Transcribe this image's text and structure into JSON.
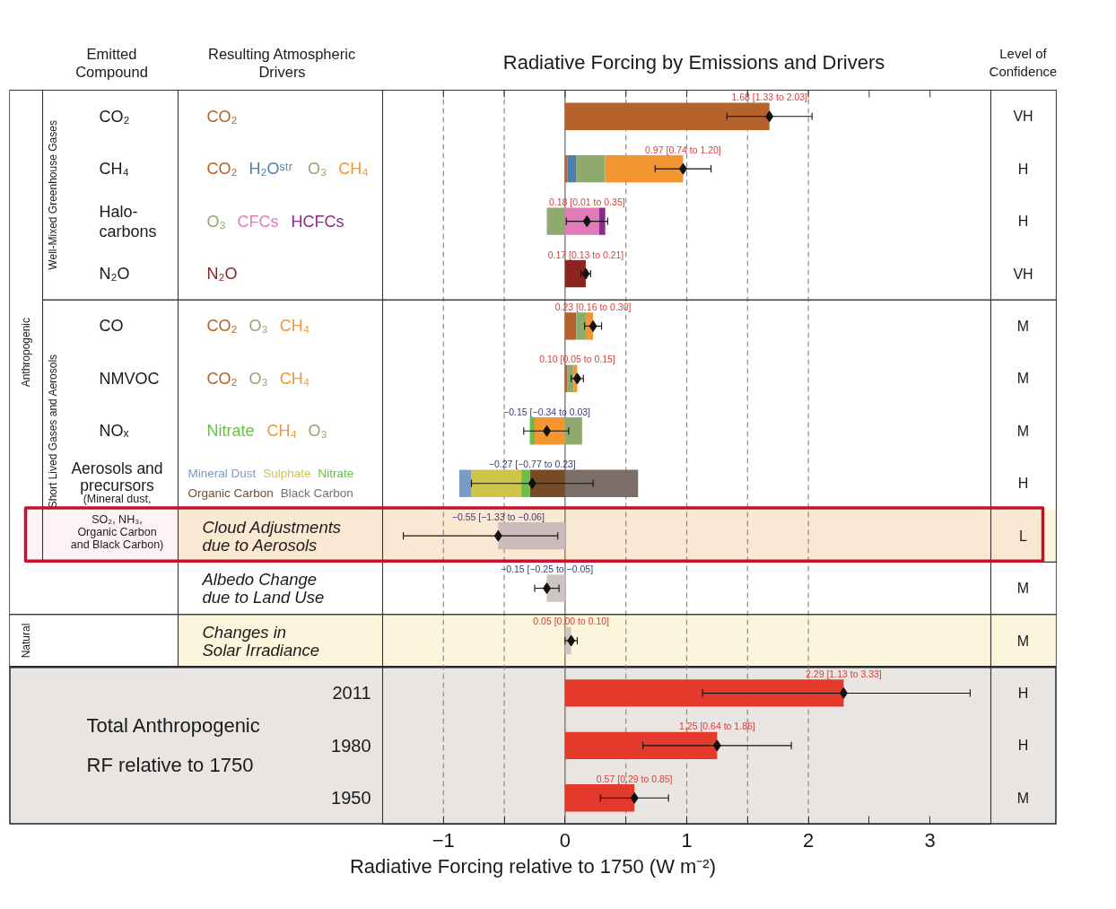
{
  "chart_data": {
    "type": "bar",
    "orientation": "horizontal",
    "stacked": true,
    "title": "Radiative Forcing by Emissions and Drivers",
    "xlabel": "Radiative Forcing relative to 1750 (W m⁻²)",
    "legend_title": "Resulting Atmospheric Drivers",
    "y2label": "Level of Confidence",
    "categories": [
      null,
      null,
      null,
      null,
      null,
      null,
      null,
      null,
      "Cloud Adjustments due to Aerosols",
      "Albedo Change due to Land Use",
      "Changes in Solar Irradiance",
      "2011",
      "1980",
      "1950"
    ],
    "y2_categories": [
      "VH",
      "H",
      "H",
      "VH",
      "M",
      "M",
      "M",
      "H",
      "L",
      "M",
      "M",
      "H",
      "H",
      "M"
    ],
    "xlim": [
      -1.5,
      3.5
    ],
    "xticks": [
      {
        "value": -1,
        "label": "−1"
      },
      {
        "value": -0.5,
        "label": null
      },
      0,
      {
        "value": 0.5,
        "label": null
      },
      1,
      {
        "value": 1.5,
        "label": null
      },
      2,
      {
        "value": 2.5,
        "label": null
      },
      3
    ],
    "series": [
      {
        "name": "CO₂",
        "color": "#b5622d",
        "values": [
          1.68,
          0.02,
          null,
          null,
          0.09,
          0.02,
          null,
          null,
          null,
          null,
          null,
          null,
          null,
          null
        ]
      },
      {
        "name": "H₂Oˢᵗʳ",
        "color": "#4d7eb0",
        "values": [
          null,
          0.07,
          null,
          null,
          null,
          null,
          null,
          null,
          null,
          null,
          null,
          null,
          null,
          null
        ]
      },
      {
        "name": "O₃",
        "color": "#8faa6e",
        "values": [
          null,
          0.24,
          -0.15,
          null,
          0.08,
          0.05,
          0.14,
          null,
          null,
          null,
          null,
          null,
          null,
          null
        ]
      },
      {
        "name": "CH₄",
        "color": "#f39632",
        "values": [
          null,
          0.64,
          null,
          null,
          0.06,
          0.03,
          -0.25,
          null,
          null,
          null,
          null,
          null,
          null,
          null
        ]
      },
      {
        "name": "CFCs",
        "color": "#e07ab8",
        "values": [
          null,
          null,
          0.28,
          null,
          null,
          null,
          null,
          null,
          null,
          null,
          null,
          null,
          null,
          null
        ]
      },
      {
        "name": "HCFCs",
        "color": "#8b2a86",
        "values": [
          null,
          null,
          0.05,
          null,
          null,
          null,
          null,
          null,
          null,
          null,
          null,
          null,
          null,
          null
        ]
      },
      {
        "name": "N₂O",
        "color": "#8b2522",
        "values": [
          null,
          null,
          null,
          0.17,
          null,
          null,
          null,
          null,
          null,
          null,
          null,
          null,
          null,
          null
        ]
      },
      {
        "name": "Organic Carbon",
        "color": "#774b26",
        "values": [
          null,
          null,
          null,
          null,
          null,
          null,
          null,
          -0.29,
          null,
          null,
          null,
          null,
          null,
          null
        ]
      },
      {
        "name": "Nitrate",
        "color": "#6bbf45",
        "values": [
          null,
          null,
          null,
          null,
          null,
          null,
          -0.04,
          -0.07,
          null,
          null,
          null,
          null,
          null,
          null
        ]
      },
      {
        "name": "Sulphate",
        "color": "#cfc54a",
        "values": [
          null,
          null,
          null,
          null,
          null,
          null,
          null,
          -0.41,
          null,
          null,
          null,
          null,
          null,
          null
        ]
      },
      {
        "name": "Mineral Dust",
        "color": "#7a9bc5",
        "values": [
          null,
          null,
          null,
          null,
          null,
          null,
          null,
          -0.1,
          null,
          null,
          null,
          null,
          null,
          null
        ]
      },
      {
        "name": "Black Carbon",
        "color": "#7b6e67",
        "values": [
          null,
          null,
          null,
          null,
          null,
          null,
          null,
          0.6,
          null,
          null,
          null,
          null,
          null,
          null
        ]
      },
      {
        "color": "#cdc4c3",
        "values": [
          null,
          null,
          null,
          null,
          null,
          null,
          null,
          null,
          -0.55,
          -0.15,
          0.05,
          null,
          null,
          null
        ]
      },
      {
        "color": "#e33a2c",
        "values": [
          null,
          null,
          null,
          null,
          null,
          null,
          null,
          null,
          null,
          null,
          null,
          2.29,
          1.25,
          0.57
        ]
      },
      {
        "type": "scatter",
        "marker": "diamond",
        "color": "#111111",
        "values": [
          1.68,
          0.97,
          0.18,
          0.17,
          0.23,
          0.1,
          -0.15,
          -0.27,
          -0.55,
          -0.15,
          0.05,
          2.29,
          1.25,
          0.57
        ],
        "errors": [
          [
            1.33,
            2.03
          ],
          [
            0.74,
            1.2
          ],
          [
            0.01,
            0.35
          ],
          [
            0.13,
            0.21
          ],
          [
            0.16,
            0.3
          ],
          [
            0.05,
            0.15
          ],
          [
            -0.34,
            0.03
          ],
          [
            -0.77,
            0.23
          ],
          [
            -1.33,
            -0.06
          ],
          [
            -0.25,
            -0.05
          ],
          [
            0.0,
            0.1
          ],
          [
            1.13,
            3.33
          ],
          [
            0.64,
            1.86
          ],
          [
            0.29,
            0.85
          ]
        ],
        "value_labels": [
          "1.68 [1.33 to 2.03]",
          "0.97 [0.74 to 1.20]",
          "0.18 [0.01 to 0.35]",
          "0.17 [0.13 to 0.21]",
          "0.23 [0.16 to 0.30]",
          "0.10 [0.05 to 0.15]",
          "−0.15 [−0.34 to 0.03]",
          "−0.27 [−0.77 to 0.23]",
          "−0.55 [−1.33 to −0.06]",
          "−0.15 [−0.25 to −0.05]",
          "0.05 [0.00 to 0.10]",
          "2.29 [1.13 to 3.33]",
          "1.25 [0.64 to 1.86]",
          "0.57 [0.29 to 0.85]"
        ]
      }
    ],
    "ref_lines": [
      {
        "axis": "x",
        "value": 0,
        "color": "#666666",
        "line_style": "solid"
      },
      {
        "axis": "x",
        "value": -1,
        "color": "#8c8c8c",
        "line_style": "dashed"
      },
      {
        "axis": "x",
        "value": -0.5,
        "color": "#8c8c8c",
        "line_style": "dashed"
      },
      {
        "axis": "x",
        "value": 0.5,
        "color": "#8c8c8c",
        "line_style": "dashed"
      },
      {
        "axis": "x",
        "value": 1,
        "color": "#8c8c8c",
        "line_style": "dashed"
      },
      {
        "axis": "x",
        "value": 1.5,
        "color": "#8c8c8c",
        "line_style": "dashed"
      },
      {
        "axis": "x",
        "value": 2,
        "color": "#8c8c8c",
        "line_style": "dashed"
      }
    ],
    "bands": [
      {
        "axis": "y",
        "from": "Cloud Adjustments due to Aerosols",
        "to": "Cloud Adjustments due to Aerosols",
        "color": "#fcf5dc"
      },
      {
        "axis": "y",
        "from": "Changes in Solar Irradiance",
        "to": "Changes in Solar Irradiance",
        "color": "#fcf5dc"
      },
      {
        "axis": "y",
        "from": "2011",
        "to": "1950",
        "color": "#e8e5e3",
        "label": "Total Anthropogenic RF relative to 1750"
      },
      {
        "axis": "y",
        "from": "Cloud Adjustments due to Aerosols",
        "to": "Cloud Adjustments due to Aerosols",
        "color": "#c8102e"
      }
    ],
    "annotations": [
      "Emitted Compound",
      "Anthropogenic",
      "Natural",
      "Well-Mixed Greenhouse Gases",
      "Short Lived Gases and Aerosols",
      "CO₂",
      "CH₄",
      "Halo-carbons",
      "N₂O",
      "CO",
      "NMVOC",
      "NOₓ",
      "Aerosols and precursors (Mineral dust, SO₂, NH₃, Organic Carbon and Black Carbon)"
    ]
  }
}
